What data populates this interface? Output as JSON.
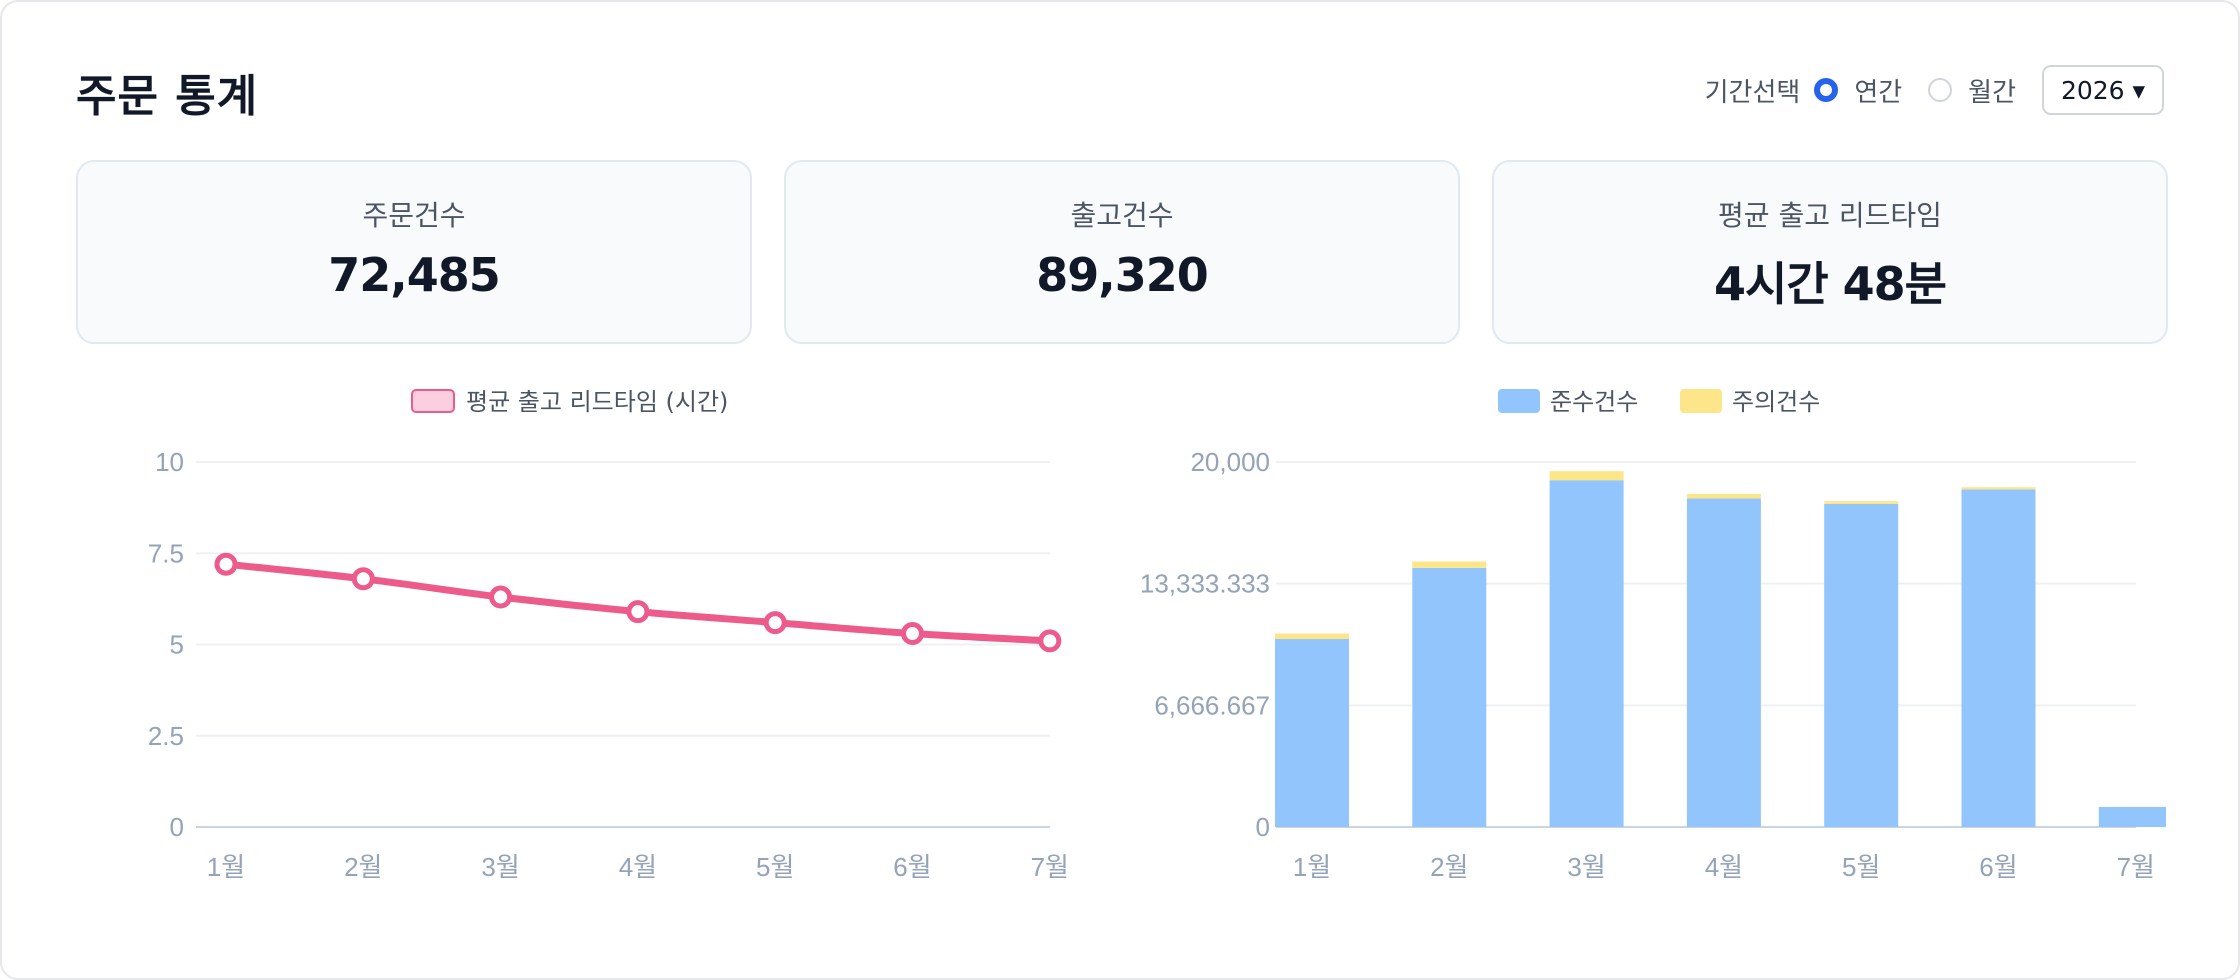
{
  "header": {
    "title": "주문 통계",
    "period_label": "기간선택",
    "options": [
      {
        "label": "연간",
        "selected": true
      },
      {
        "label": "월간",
        "selected": false
      }
    ],
    "year_select": "2026 ▾"
  },
  "cards": [
    {
      "label": "주문건수",
      "value": "72,485"
    },
    {
      "label": "출고건수",
      "value": "89,320"
    },
    {
      "label": "평균 출고 리드타임",
      "value": "4시간 48분"
    }
  ],
  "colors": {
    "accent": "#2563eb",
    "line": "#ec5b8a",
    "line_legend_fill": "#fbcfe0",
    "bar_comply": "#93c5fd",
    "bar_caution": "#fde68a"
  },
  "chart_data": [
    {
      "type": "line",
      "legend": [
        "평균 출고 리드타임 (시간)"
      ],
      "categories": [
        "1월",
        "2월",
        "3월",
        "4월",
        "5월",
        "6월",
        "7월"
      ],
      "series": [
        {
          "name": "평균 출고 리드타임 (시간)",
          "values": [
            7.2,
            6.8,
            6.3,
            5.9,
            5.6,
            5.3,
            5.1
          ]
        }
      ],
      "y_ticks": [
        "0",
        "2.5",
        "5",
        "7.5",
        "10"
      ],
      "ylim": [
        0,
        10
      ],
      "grid": true,
      "legend_position": "top"
    },
    {
      "type": "bar",
      "stacked": true,
      "categories": [
        "1월",
        "2월",
        "3월",
        "4월",
        "5월",
        "6월",
        "7월"
      ],
      "series": [
        {
          "name": "준수건수",
          "values": [
            10300,
            14200,
            19000,
            18000,
            17700,
            18500,
            1100
          ]
        },
        {
          "name": "주의건수",
          "values": [
            300,
            350,
            500,
            250,
            150,
            120,
            0
          ]
        }
      ],
      "y_ticks": [
        "0",
        "6,666.667",
        "13,333.333",
        "20,000"
      ],
      "ylim": [
        0,
        20000
      ],
      "grid": true,
      "legend_position": "top"
    }
  ]
}
